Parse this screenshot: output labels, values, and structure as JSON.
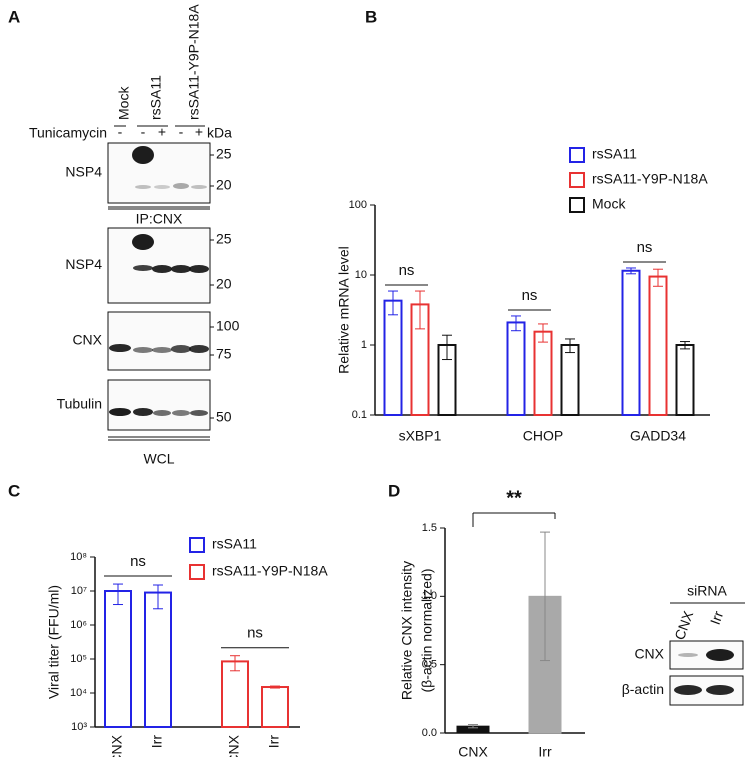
{
  "panel_a": {
    "panel": "A",
    "lanes": [
      "Mock",
      "rsSA11",
      "rsSA11-Y9P-N18A"
    ],
    "treatment": "Tunicamycin",
    "signs": [
      "-",
      "-",
      "+",
      "-",
      "+"
    ],
    "kda": "kDa",
    "blots": [
      {
        "label": "NSP4",
        "markers": [
          "25",
          "20"
        ]
      },
      {
        "label": "NSP4",
        "markers": [
          "25",
          "20"
        ]
      },
      {
        "label": "CNX",
        "markers": [
          "100",
          "75"
        ]
      },
      {
        "label": "Tubulin",
        "markers": [
          "50"
        ]
      }
    ],
    "ip": "IP:CNX",
    "wcl": "WCL"
  },
  "chart_data": [
    {
      "type": "bar",
      "panel": "B",
      "y_label": "Relative mRNA level",
      "categories": [
        "sXBP1",
        "CHOP",
        "GADD34"
      ],
      "log_y": true,
      "ylim": [
        0.1,
        100
      ],
      "yticks": [
        0.1,
        1,
        10,
        100
      ],
      "grouped": true,
      "open_bars": true,
      "annotations": [
        "ns",
        "ns",
        "ns"
      ],
      "series": [
        {
          "name": "rsSA11",
          "color": "#2323e6",
          "values": [
            4.3,
            2.1,
            11.5
          ],
          "errors": [
            1.6,
            0.5,
            1.1
          ]
        },
        {
          "name": "rsSA11-Y9P-N18A",
          "color": "#e83232",
          "values": [
            3.8,
            1.55,
            9.5
          ],
          "errors": [
            2.1,
            0.45,
            2.6
          ]
        },
        {
          "name": "Mock",
          "color": "#111111",
          "values": [
            1,
            1,
            1
          ],
          "errors": [
            0.38,
            0.22,
            0.12
          ]
        }
      ]
    },
    {
      "type": "bar",
      "panel": "C",
      "y_label": "Viral titer (FFU/ml)",
      "categories": [
        "CNX",
        "Irr",
        "CNX",
        "Irr"
      ],
      "log_y": true,
      "ylim": [
        1000,
        100000000
      ],
      "grouped": false,
      "open_bars": true,
      "annotations": [
        "ns",
        "ns"
      ],
      "yticks": [
        {
          "value": 1000,
          "label": "10³"
        },
        {
          "value": 10000,
          "label": "10⁴"
        },
        {
          "value": 100000,
          "label": "10⁵"
        },
        {
          "value": 1000000,
          "label": "10⁶"
        },
        {
          "value": 10000000,
          "label": "10⁷"
        },
        {
          "value": 100000000,
          "label": "10⁸"
        }
      ],
      "series": [
        {
          "name": "rsSA11",
          "color": "#2323e6",
          "values": [
            10000000,
            9000000,
            null,
            null
          ],
          "errors": [
            6000000,
            6000000,
            null,
            null
          ]
        },
        {
          "name": "rsSA11-Y9P-N18A",
          "color": "#e83232",
          "values": [
            null,
            null,
            85000,
            15000
          ],
          "errors": [
            null,
            null,
            40000,
            1000
          ]
        }
      ]
    },
    {
      "type": "bar",
      "panel": "D",
      "y_label": [
        "Relative CNX intensity",
        "(β-actin normalized)"
      ],
      "categories": [
        "CNX",
        "Irr"
      ],
      "log_y": false,
      "ylim": [
        0,
        1.5
      ],
      "yticks": [
        {
          "value": 0,
          "label": "0.0"
        },
        {
          "value": 0.5,
          "label": "0.5"
        },
        {
          "value": 1,
          "label": "1.0"
        },
        {
          "value": 1.5,
          "label": "1.5"
        }
      ],
      "grouped": false,
      "open_bars": false,
      "annotations": [
        "**"
      ],
      "series": [
        {
          "values": [
            0.05,
            1.0
          ],
          "errors": [
            0.012,
            0.47
          ],
          "colors": [
            "#111111",
            "#a9a9a9"
          ]
        }
      ]
    }
  ],
  "panel_d_blot": {
    "header": "siRNA",
    "lanes": [
      "CNX",
      "Irr"
    ],
    "rows": [
      "CNX",
      "β-actin"
    ]
  }
}
